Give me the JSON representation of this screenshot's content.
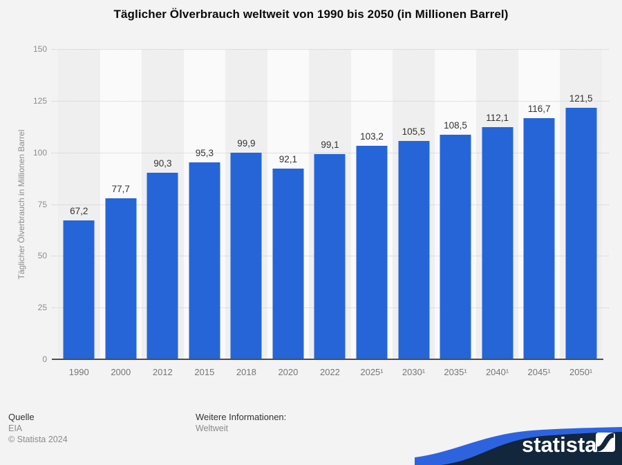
{
  "chart_data": {
    "type": "bar",
    "title": "Täglicher Ölverbrauch weltweit von 1990 bis 2050 (in Millionen Barrel)",
    "categories": [
      "1990",
      "2000",
      "2012",
      "2015",
      "2018",
      "2020",
      "2022",
      "2025¹",
      "2030¹",
      "2035¹",
      "2040¹",
      "2045¹",
      "2050¹"
    ],
    "values": [
      67.2,
      77.7,
      90.3,
      95.3,
      99.9,
      92.1,
      99.1,
      103.2,
      105.5,
      108.5,
      112.1,
      116.7,
      121.5
    ],
    "value_labels": [
      "67,2",
      "77,7",
      "90,3",
      "95,3",
      "99,9",
      "92,1",
      "99,1",
      "103,2",
      "105,5",
      "108,5",
      "112,1",
      "116,7",
      "121,5"
    ],
    "xlabel": "",
    "ylabel": "Täglicher Ölverbrauch in Millionen Barrel",
    "ylim": [
      0,
      150
    ],
    "yticks": [
      0,
      25,
      50,
      75,
      100,
      125,
      150
    ],
    "grid": "horizontal-dotted",
    "legend": "none",
    "bar_color": "#2565d8",
    "band_colors": [
      "#efeff0",
      "#fafafa"
    ]
  },
  "footer": {
    "source_label": "Quelle",
    "source": "EIA",
    "copyright": "© Statista 2024",
    "info_label": "Weitere Informationen:",
    "info": "Weltweit"
  },
  "branding": {
    "logo_text": "statista",
    "navy": "#12263c",
    "accent_blue": "#2e63e0"
  }
}
